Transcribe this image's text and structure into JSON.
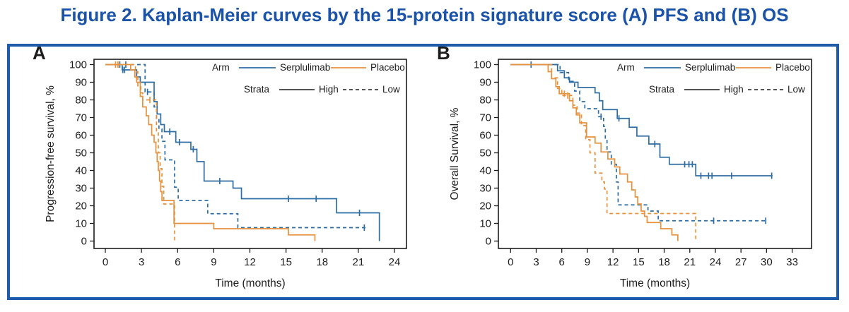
{
  "title": "Figure 2. Kaplan-Meier curves by the 15-protein signature score (A) PFS and (B) OS",
  "colors": {
    "title_blue": "#1a53a8",
    "border_blue": "#1e5cab",
    "serplulimab": "#2e6da4",
    "placebo": "#e8913c",
    "axis": "#1c1c1c"
  },
  "legend": {
    "arm_label": "Arm",
    "strata_label": "Strata",
    "arms": [
      {
        "name": "Serplulimab",
        "color": "#2e6da4"
      },
      {
        "name": "Placebo",
        "color": "#e8913c"
      }
    ],
    "strata": [
      {
        "name": "High",
        "dash": "solid"
      },
      {
        "name": "Low",
        "dash": "dashed"
      }
    ]
  },
  "chart_data": [
    {
      "type": "line",
      "panel_label": "A",
      "subtitle": "Progression-free survival (PFS)",
      "xlabel": "Time (months)",
      "ylabel": "Progression-free survival, %",
      "xlim": [
        0,
        24
      ],
      "ylim": [
        0,
        100
      ],
      "xticks": [
        0,
        3,
        6,
        9,
        12,
        15,
        18,
        21,
        24
      ],
      "yticks": [
        0,
        10,
        20,
        30,
        40,
        50,
        60,
        70,
        80,
        90,
        100
      ],
      "grid": false,
      "legend_position": "top-right-inside",
      "series": [
        {
          "arm": "Serplulimab",
          "strata": "High",
          "color": "#2e6da4",
          "dash": "solid",
          "points": [
            [
              0,
              100
            ],
            [
              1.4,
              97
            ],
            [
              2.6,
              93
            ],
            [
              2.9,
              90
            ],
            [
              4.05,
              79
            ],
            [
              4.3,
              72
            ],
            [
              4.6,
              66
            ],
            [
              4.9,
              62
            ],
            [
              5.85,
              56
            ],
            [
              7.1,
              52
            ],
            [
              7.6,
              45
            ],
            [
              8.2,
              34
            ],
            [
              10.6,
              30
            ],
            [
              11.3,
              24
            ],
            [
              19.2,
              16
            ],
            [
              22.75,
              0
            ]
          ],
          "end": 22.75,
          "censors": [
            1.2,
            1.45,
            1.6,
            5.35,
            6.15,
            7.3,
            9.5,
            15.2,
            17.5,
            21.1
          ]
        },
        {
          "arm": "Serplulimab",
          "strata": "Low",
          "color": "#2e6da4",
          "dash": "dashed",
          "points": [
            [
              0,
              100
            ],
            [
              3.3,
              84.5
            ],
            [
              4.05,
              76
            ],
            [
              4.25,
              69.5
            ],
            [
              4.45,
              63.5
            ],
            [
              4.7,
              56.5
            ],
            [
              4.95,
              46
            ],
            [
              5.75,
              30.5
            ],
            [
              6.05,
              23
            ],
            [
              8.5,
              15.5
            ],
            [
              11.0,
              7.6
            ]
          ],
          "end": 21.8,
          "censors": [
            1.7,
            3.5,
            21.5
          ]
        },
        {
          "arm": "Placebo",
          "strata": "High",
          "color": "#e8913c",
          "dash": "solid",
          "points": [
            [
              0,
              100
            ],
            [
              2.1,
              97
            ],
            [
              2.45,
              93
            ],
            [
              2.6,
              90
            ],
            [
              2.9,
              82
            ],
            [
              3.1,
              76
            ],
            [
              3.4,
              71
            ],
            [
              3.6,
              66
            ],
            [
              3.85,
              60
            ],
            [
              4.05,
              56
            ],
            [
              4.2,
              50
            ],
            [
              4.3,
              45
            ],
            [
              4.4,
              40
            ],
            [
              4.5,
              34
            ],
            [
              4.6,
              28
            ],
            [
              4.7,
              23
            ],
            [
              5.7,
              10
            ],
            [
              9.0,
              7
            ],
            [
              15.2,
              3.5
            ],
            [
              17.4,
              0
            ]
          ],
          "end": 17.4,
          "censors": [
            0.85
          ]
        },
        {
          "arm": "Placebo",
          "strata": "Low",
          "color": "#e8913c",
          "dash": "dashed",
          "points": [
            [
              0,
              100
            ],
            [
              2.5,
              96
            ],
            [
              2.7,
              88
            ],
            [
              2.95,
              84
            ],
            [
              3.1,
              80
            ],
            [
              4.25,
              62
            ],
            [
              4.4,
              50
            ],
            [
              4.55,
              41
            ],
            [
              4.7,
              31
            ],
            [
              4.85,
              21
            ],
            [
              5.75,
              0
            ]
          ],
          "end": 5.75,
          "censors": [
            1.05,
            3.7
          ]
        }
      ]
    },
    {
      "type": "line",
      "panel_label": "B",
      "subtitle": "Overall survival (OS)",
      "xlabel": "Time (months)",
      "ylabel": "Overall Survival, %",
      "xlim": [
        0,
        33
      ],
      "ylim": [
        0,
        100
      ],
      "xticks": [
        0,
        3,
        6,
        9,
        12,
        15,
        18,
        21,
        24,
        27,
        30,
        33
      ],
      "yticks": [
        0,
        10,
        20,
        30,
        40,
        50,
        60,
        70,
        80,
        90,
        100
      ],
      "grid": false,
      "legend_position": "top-right-inside",
      "series": [
        {
          "arm": "Serplulimab",
          "strata": "High",
          "color": "#2e6da4",
          "dash": "solid",
          "points": [
            [
              0,
              100
            ],
            [
              5.5,
              96.5
            ],
            [
              6.3,
              92.5
            ],
            [
              6.9,
              90
            ],
            [
              7.9,
              87
            ],
            [
              9.9,
              84
            ],
            [
              10.4,
              79.5
            ],
            [
              10.8,
              74.5
            ],
            [
              12.5,
              69.5
            ],
            [
              13.9,
              64.5
            ],
            [
              14.8,
              59.5
            ],
            [
              16.2,
              55
            ],
            [
              17.5,
              47.5
            ],
            [
              18.6,
              43.5
            ],
            [
              21.7,
              37
            ]
          ],
          "end": 30.7,
          "censors": [
            2.4,
            12.7,
            16.9,
            20.4,
            20.9,
            21.3,
            22.3,
            23.2,
            23.6,
            25.9,
            30.6
          ]
        },
        {
          "arm": "Serplulimab",
          "strata": "Low",
          "color": "#2e6da4",
          "dash": "dashed",
          "points": [
            [
              0,
              100
            ],
            [
              5.8,
              95.5
            ],
            [
              6.8,
              90.5
            ],
            [
              7.5,
              85
            ],
            [
              8.1,
              79
            ],
            [
              8.7,
              75
            ],
            [
              10.3,
              70.5
            ],
            [
              10.9,
              65
            ],
            [
              11.1,
              57
            ],
            [
              11.3,
              50.5
            ],
            [
              11.8,
              43.5
            ],
            [
              12.4,
              33.5
            ],
            [
              12.6,
              20.5
            ],
            [
              16.1,
              17
            ],
            [
              17.3,
              11.5
            ]
          ],
          "end": 30.1,
          "censors": [
            10.6,
            23.8,
            29.9
          ]
        },
        {
          "arm": "Placebo",
          "strata": "High",
          "color": "#e8913c",
          "dash": "solid",
          "points": [
            [
              0,
              100
            ],
            [
              4.4,
              96
            ],
            [
              4.8,
              92
            ],
            [
              5.3,
              87.5
            ],
            [
              5.7,
              83.5
            ],
            [
              6.9,
              79.5
            ],
            [
              7.3,
              75.5
            ],
            [
              7.7,
              71.5
            ],
            [
              8.1,
              67
            ],
            [
              8.9,
              59
            ],
            [
              9.9,
              55.5
            ],
            [
              10.6,
              50.5
            ],
            [
              11.4,
              46.5
            ],
            [
              12.2,
              42
            ],
            [
              12.8,
              38
            ],
            [
              13.7,
              33.5
            ],
            [
              14.2,
              29
            ],
            [
              14.6,
              25
            ],
            [
              14.9,
              21
            ],
            [
              15.3,
              17
            ],
            [
              15.7,
              14
            ],
            [
              16.0,
              10.5
            ],
            [
              17.6,
              7
            ],
            [
              18.9,
              3.5
            ],
            [
              19.6,
              0
            ]
          ],
          "end": 19.6,
          "censors": [
            6.3
          ]
        },
        {
          "arm": "Placebo",
          "strata": "Low",
          "color": "#e8913c",
          "dash": "dashed",
          "points": [
            [
              0,
              100
            ],
            [
              4.8,
              92.5
            ],
            [
              5.5,
              86.5
            ],
            [
              6.0,
              82.5
            ],
            [
              7.3,
              77
            ],
            [
              7.8,
              72.5
            ],
            [
              8.3,
              65.5
            ],
            [
              8.8,
              57.5
            ],
            [
              9.3,
              50
            ],
            [
              9.9,
              38.5
            ],
            [
              10.7,
              33.5
            ],
            [
              11.0,
              29.5
            ],
            [
              11.3,
              15.6
            ],
            [
              21.7,
              0
            ]
          ],
          "end": 21.7,
          "censors": [
            6.7
          ]
        }
      ]
    }
  ]
}
